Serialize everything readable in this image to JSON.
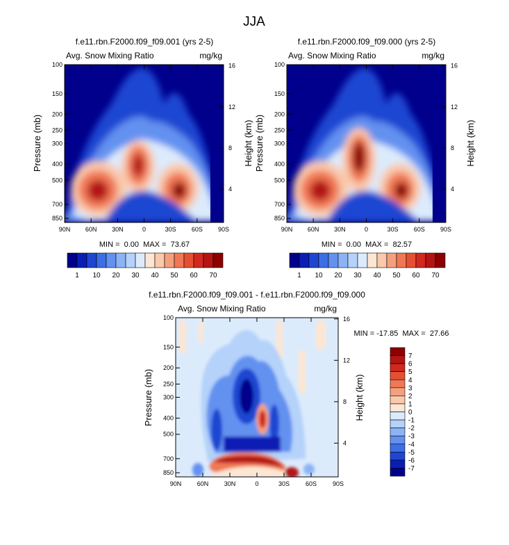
{
  "title": "JJA",
  "chart_data": [
    {
      "type": "heatmap",
      "title": "f.e11.rbn.F2000.f09_f09.001 (yrs 2-5)",
      "variable": "Avg. Snow Mixing Ratio",
      "units": "mg/kg",
      "ylabel": "Pressure (mb)",
      "ylabel_right": "Height (km)",
      "xticks": [
        "90N",
        "60N",
        "30N",
        "0",
        "30S",
        "60S",
        "90S"
      ],
      "yticks": [
        "100",
        "150",
        "200",
        "250",
        "300",
        "400",
        "500",
        "700",
        "850"
      ],
      "height_ticks": [
        "16",
        "12",
        "8",
        "4"
      ],
      "stats": "MIN =  0.00  MAX =  73.67",
      "colorbar": {
        "labels": [
          "1",
          "10",
          "20",
          "30",
          "40",
          "50",
          "60",
          "70"
        ],
        "colors": [
          "#00008c",
          "#0a1eb4",
          "#1e46d2",
          "#3c6ee6",
          "#6491f0",
          "#8cb4f5",
          "#b4d2fa",
          "#dcebfc",
          "#fde6d2",
          "#fac8aa",
          "#f5a07d",
          "#f07855",
          "#e65032",
          "#d2281e",
          "#b41414",
          "#8c0000"
        ]
      },
      "features": [
        {
          "name": "northern lobe",
          "lat": 55,
          "plev": 580,
          "value": 72
        },
        {
          "name": "tropical column",
          "lat": 15,
          "plev": 400,
          "value": 60
        },
        {
          "name": "southern lobe",
          "lat": -42,
          "plev": 560,
          "value": 68
        }
      ]
    },
    {
      "type": "heatmap",
      "title": "f.e11.rbn.F2000.f09_f09.000 (yrs 2-5)",
      "variable": "Avg. Snow Mixing Ratio",
      "units": "mg/kg",
      "ylabel": "Pressure (mb)",
      "ylabel_right": "Height (km)",
      "xticks": [
        "90N",
        "60N",
        "30N",
        "0",
        "30S",
        "60S",
        "90S"
      ],
      "yticks": [
        "100",
        "150",
        "200",
        "250",
        "300",
        "400",
        "500",
        "700",
        "850"
      ],
      "height_ticks": [
        "16",
        "12",
        "8",
        "4"
      ],
      "stats": "MIN =  0.00  MAX =  82.57",
      "colorbar": {
        "labels": [
          "1",
          "10",
          "20",
          "30",
          "40",
          "50",
          "60",
          "70"
        ],
        "colors": [
          "#00008c",
          "#0a1eb4",
          "#1e46d2",
          "#3c6ee6",
          "#6491f0",
          "#8cb4f5",
          "#b4d2fa",
          "#dcebfc",
          "#fde6d2",
          "#fac8aa",
          "#f5a07d",
          "#f07855",
          "#e65032",
          "#d2281e",
          "#b41414",
          "#8c0000"
        ]
      },
      "features": [
        {
          "name": "northern lobe",
          "lat": 52,
          "plev": 560,
          "value": 78
        },
        {
          "name": "tropical column",
          "lat": 12,
          "plev": 350,
          "value": 80
        },
        {
          "name": "southern lobe",
          "lat": -40,
          "plev": 560,
          "value": 75
        }
      ]
    },
    {
      "type": "heatmap",
      "title": "f.e11.rbn.F2000.f09_f09.001 - f.e11.rbn.F2000.f09_f09.000",
      "variable": "Avg. Snow Mixing Ratio",
      "units": "mg/kg",
      "ylabel": "Pressure (mb)",
      "ylabel_right": "Height (km)",
      "xticks": [
        "90N",
        "60N",
        "30N",
        "0",
        "30S",
        "60S",
        "90S"
      ],
      "yticks": [
        "100",
        "150",
        "200",
        "250",
        "300",
        "400",
        "500",
        "700",
        "850"
      ],
      "height_ticks": [
        "16",
        "12",
        "8",
        "4"
      ],
      "stats": "MIN = -17.85  MAX =  27.66",
      "colorbar": {
        "labels": [
          "7",
          "6",
          "5",
          "4",
          "3",
          "2",
          "1",
          "0",
          "-1",
          "-2",
          "-3",
          "-4",
          "-5",
          "-6",
          "-7"
        ],
        "colors": [
          "#8c0000",
          "#b41414",
          "#d2281e",
          "#e65032",
          "#f07855",
          "#f5a07d",
          "#fac8aa",
          "#fde6d2",
          "#dcebfc",
          "#b4d2fa",
          "#8cb4f5",
          "#6491f0",
          "#3c6ee6",
          "#1e46d2",
          "#0a1eb4",
          "#00008c"
        ]
      },
      "features": [
        {
          "name": "low-level positive band",
          "lat_range": [
            40,
            -35
          ],
          "plev": 700,
          "value": 8
        },
        {
          "name": "upper negative core",
          "lat": 20,
          "plev": 300,
          "value": -8
        },
        {
          "name": "tropical positive spot",
          "lat": -5,
          "plev": 420,
          "value": 6
        }
      ]
    }
  ]
}
